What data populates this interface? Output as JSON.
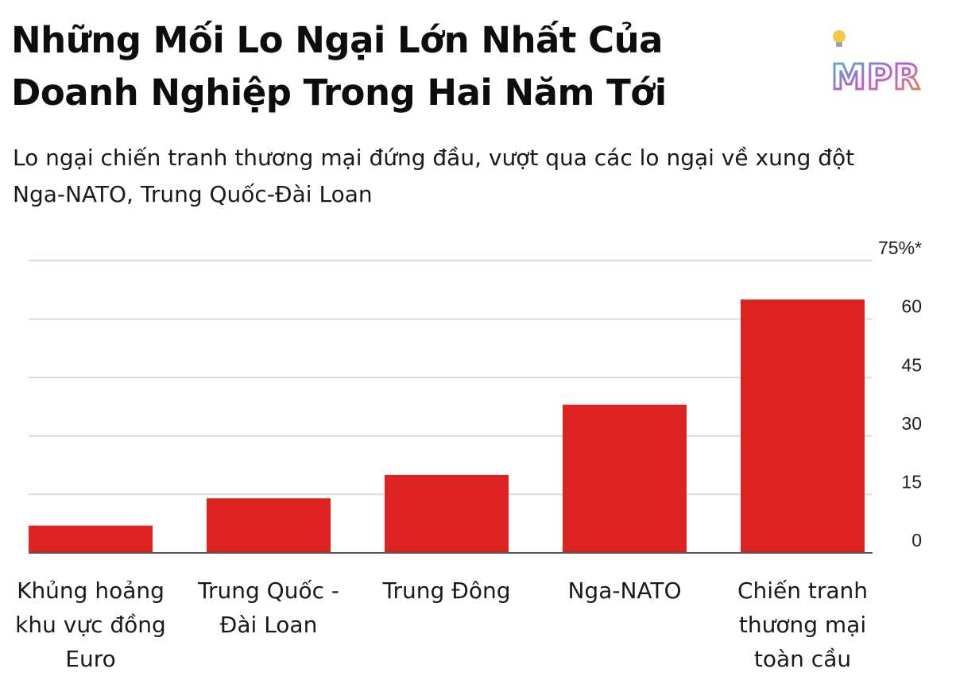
{
  "header": {
    "title": "Những Mối Lo Ngại Lớn Nhất Của Doanh Nghiệp Trong Hai Năm Tới",
    "subtitle": "Lo ngại chiến tranh thương mại đứng đầu, vượt qua các lo ngại về xung đột Nga-NATO, Trung Quốc-Đài Loan",
    "logo_text": "MPR"
  },
  "chart_data": {
    "type": "bar",
    "title": "Những Mối Lo Ngại Lớn Nhất Của Doanh Nghiệp Trong Hai Năm Tới",
    "subtitle": "Lo ngại chiến tranh thương mại đứng đầu, vượt qua các lo ngại về xung đột Nga-NATO, Trung Quốc-Đài Loan",
    "categories": [
      "Khủng hoảng khu vực đồng Euro",
      "Trung Quốc - Đài Loan",
      "Trung Đông",
      "Nga-NATO",
      "Chiến tranh thương mại toàn cầu"
    ],
    "values": [
      7,
      14,
      20,
      38,
      65
    ],
    "ylim": [
      0,
      75
    ],
    "yticks": [
      0,
      15,
      30,
      45,
      60,
      75
    ],
    "ytick_labels": [
      "0",
      "15",
      "30",
      "45",
      "60",
      "75%*"
    ],
    "y_axis_side": "right",
    "grid": true,
    "bar_color": "#dc2321",
    "grid_color": "#dcdcdc",
    "axis_color": "#555555"
  }
}
